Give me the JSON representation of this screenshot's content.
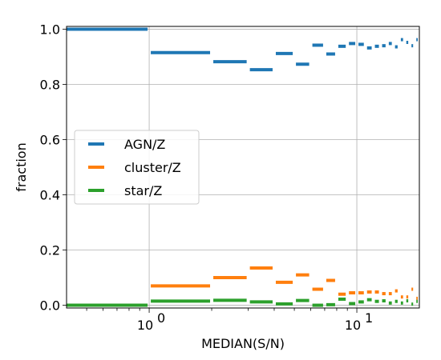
{
  "chart_data": {
    "type": "step-segments",
    "xlabel": "MEDIAN(S/N)",
    "ylabel": "fraction",
    "xscale": "log",
    "xlim": [
      0.4,
      20
    ],
    "ylim": [
      -0.01,
      1.01
    ],
    "yticks": [
      {
        "value": 0.0,
        "label": "0.0"
      },
      {
        "value": 0.2,
        "label": "0.2"
      },
      {
        "value": 0.4,
        "label": "0.4"
      },
      {
        "value": 0.6,
        "label": "0.6"
      },
      {
        "value": 0.8,
        "label": "0.8"
      },
      {
        "value": 1.0,
        "label": "1.0"
      }
    ],
    "xticks_major": [
      {
        "value": 1,
        "base": "10",
        "exp": "0"
      },
      {
        "value": 10,
        "base": "10",
        "exp": "1"
      }
    ],
    "grid": true,
    "legend_position": "center-left",
    "series": [
      {
        "name": "AGN/Z",
        "color": "#1f77b4",
        "segments": [
          [
            0.4,
            1.0,
            1.0
          ],
          [
            1.0,
            2.0,
            0.915
          ],
          [
            2.0,
            3.0,
            0.882
          ],
          [
            3.0,
            4.0,
            0.853
          ],
          [
            4.0,
            5.0,
            0.912
          ],
          [
            5.0,
            6.0,
            0.873
          ],
          [
            6.0,
            7.0,
            0.942
          ],
          [
            7.0,
            8.0,
            0.91
          ],
          [
            8.0,
            9.0,
            0.938
          ],
          [
            9.0,
            10.0,
            0.948
          ],
          [
            10.0,
            11.0,
            0.945
          ],
          [
            11.0,
            12.0,
            0.932
          ],
          [
            12.0,
            13.0,
            0.938
          ],
          [
            13.0,
            14.0,
            0.94
          ],
          [
            14.0,
            15.0,
            0.948
          ],
          [
            15.0,
            16.0,
            0.936
          ],
          [
            16.0,
            17.0,
            0.962
          ],
          [
            17.0,
            18.0,
            0.952
          ],
          [
            18.0,
            19.0,
            0.94
          ],
          [
            19.0,
            20.0,
            0.962
          ]
        ]
      },
      {
        "name": "cluster/Z",
        "color": "#ff7f0e",
        "segments": [
          [
            0.4,
            1.0,
            0.0
          ],
          [
            1.0,
            2.0,
            0.07
          ],
          [
            2.0,
            3.0,
            0.1
          ],
          [
            3.0,
            4.0,
            0.135
          ],
          [
            4.0,
            5.0,
            0.083
          ],
          [
            5.0,
            6.0,
            0.11
          ],
          [
            6.0,
            7.0,
            0.058
          ],
          [
            7.0,
            8.0,
            0.09
          ],
          [
            8.0,
            9.0,
            0.04
          ],
          [
            9.0,
            10.0,
            0.045
          ],
          [
            10.0,
            11.0,
            0.045
          ],
          [
            11.0,
            12.0,
            0.048
          ],
          [
            12.0,
            13.0,
            0.048
          ],
          [
            13.0,
            14.0,
            0.042
          ],
          [
            14.0,
            15.0,
            0.042
          ],
          [
            15.0,
            16.0,
            0.052
          ],
          [
            16.0,
            17.0,
            0.03
          ],
          [
            17.0,
            18.0,
            0.03
          ],
          [
            18.0,
            19.0,
            0.058
          ],
          [
            19.0,
            20.0,
            0.025
          ]
        ]
      },
      {
        "name": "star/Z",
        "color": "#2ca02c",
        "segments": [
          [
            0.4,
            1.0,
            0.0
          ],
          [
            1.0,
            2.0,
            0.015
          ],
          [
            2.0,
            3.0,
            0.018
          ],
          [
            3.0,
            4.0,
            0.012
          ],
          [
            4.0,
            5.0,
            0.005
          ],
          [
            5.0,
            6.0,
            0.017
          ],
          [
            6.0,
            7.0,
            0.0
          ],
          [
            7.0,
            8.0,
            0.002
          ],
          [
            8.0,
            9.0,
            0.022
          ],
          [
            9.0,
            10.0,
            0.006
          ],
          [
            10.0,
            11.0,
            0.012
          ],
          [
            11.0,
            12.0,
            0.02
          ],
          [
            12.0,
            13.0,
            0.014
          ],
          [
            13.0,
            14.0,
            0.016
          ],
          [
            14.0,
            15.0,
            0.008
          ],
          [
            15.0,
            16.0,
            0.014
          ],
          [
            16.0,
            17.0,
            0.008
          ],
          [
            17.0,
            18.0,
            0.016
          ],
          [
            18.0,
            19.0,
            0.004
          ],
          [
            19.0,
            20.0,
            0.014
          ]
        ]
      }
    ]
  }
}
